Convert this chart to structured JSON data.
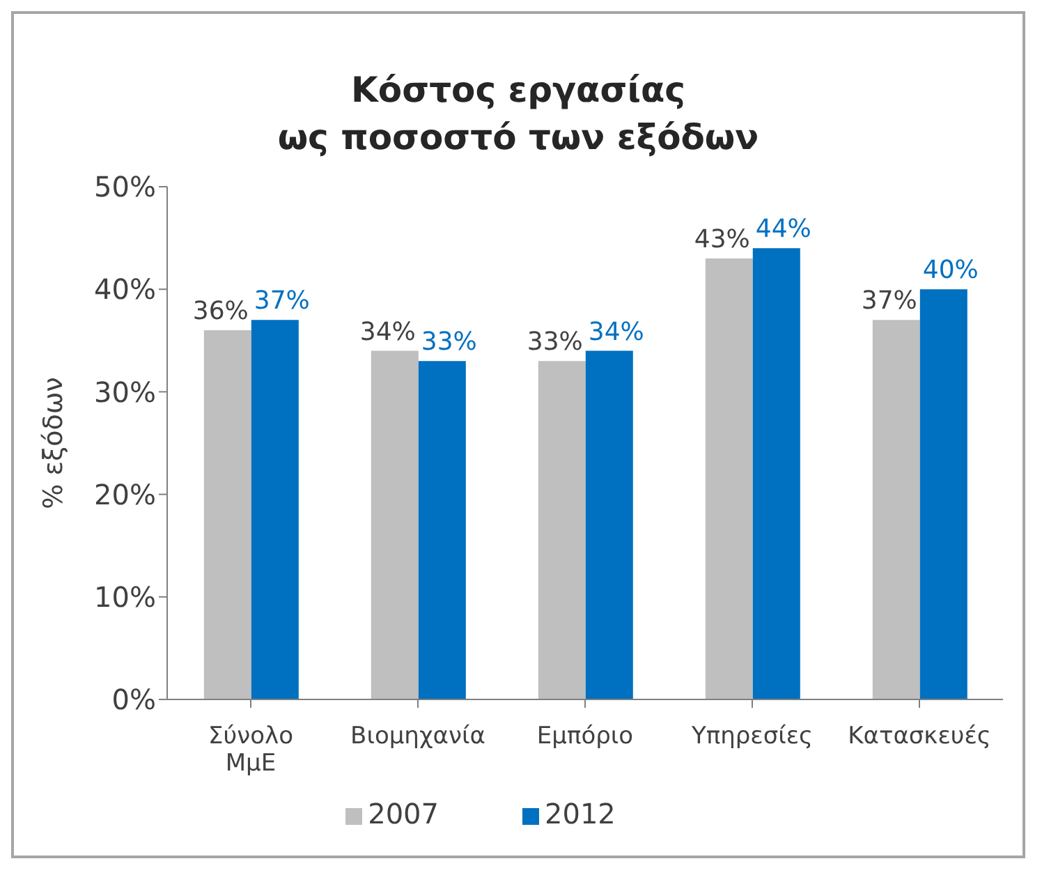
{
  "chart_data": {
    "type": "bar",
    "title": "Κόστος εργασίας\nως ποσοστό των εξόδων",
    "ylabel": "% εξόδων",
    "categories": [
      "Σύνολο ΜμΕ",
      "Βιομηχανία",
      "Εμπόριο",
      "Υπηρεσίες",
      "Κατασκευές"
    ],
    "series": [
      {
        "name": "2007",
        "color": "#bfbfbf",
        "values": [
          36,
          34,
          33,
          43,
          37
        ],
        "value_labels": [
          "36%",
          "34%",
          "33%",
          "43%",
          "37%"
        ]
      },
      {
        "name": "2012",
        "color": "#0070c0",
        "values": [
          37,
          33,
          34,
          44,
          40
        ],
        "value_labels": [
          "37%",
          "33%",
          "34%",
          "44%",
          "40%"
        ]
      }
    ],
    "ylim": [
      0,
      50
    ],
    "yticks": [
      {
        "value": 0,
        "label": "0%"
      },
      {
        "value": 10,
        "label": "10%"
      },
      {
        "value": 20,
        "label": "20%"
      },
      {
        "value": 30,
        "label": "30%"
      },
      {
        "value": 40,
        "label": "40%"
      },
      {
        "value": 50,
        "label": "50%"
      }
    ],
    "grid": false,
    "legend": "bottom"
  }
}
